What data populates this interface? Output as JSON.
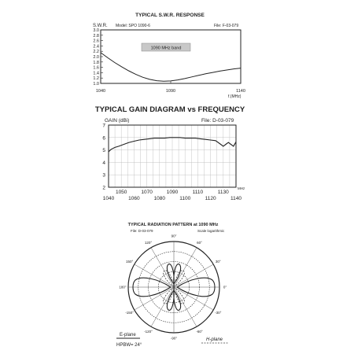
{
  "chart_data": [
    {
      "type": "line",
      "title": "TYPICAL S.W.R. RESPONSE",
      "ylabel": "S.W.R.",
      "model": "Model: SPO 1090-6",
      "file": "File: F-03-079",
      "band_label": "1090 MHz band",
      "xlabel": "f.(MHz)",
      "xlim": [
        1040,
        1140
      ],
      "ylim": [
        1.0,
        3.0
      ],
      "xticks": [
        "1040",
        "1090",
        "1140"
      ],
      "yticks": [
        "1.0",
        "1.2",
        "1.4",
        "1.6",
        "1.8",
        "2.0",
        "2.2",
        "2.4",
        "2.6",
        "2.8",
        "3.0"
      ],
      "grid": false,
      "series": [
        {
          "x": [
            1040,
            1045,
            1050,
            1055,
            1060,
            1065,
            1070,
            1075,
            1080,
            1085,
            1090,
            1095,
            1100,
            1105,
            1110,
            1115,
            1120,
            1125,
            1130,
            1135,
            1140
          ],
          "y": [
            2.15,
            1.96,
            1.78,
            1.62,
            1.47,
            1.34,
            1.23,
            1.15,
            1.1,
            1.08,
            1.09,
            1.13,
            1.18,
            1.24,
            1.3,
            1.36,
            1.41,
            1.46,
            1.5,
            1.54,
            1.57
          ]
        }
      ]
    },
    {
      "type": "line",
      "title": "TYPICAL GAIN DIAGRAM vs FREQUENCY",
      "ylabel": "GAIN (dBi)",
      "file": "File:  D-03-079",
      "xunit": "MHz",
      "xlim": [
        1040,
        1140
      ],
      "ylim": [
        2,
        7
      ],
      "xticks_top": [
        "1050",
        "1070",
        "1090",
        "1110",
        "1130"
      ],
      "xticks_bottom": [
        "1040",
        "1060",
        "1080",
        "1100",
        "1120",
        "1140"
      ],
      "yticks": [
        "2",
        "3",
        "4",
        "5",
        "6",
        "7"
      ],
      "grid": true,
      "series": [
        {
          "x": [
            1040,
            1042,
            1045,
            1048,
            1052,
            1056,
            1060,
            1064,
            1068,
            1072,
            1076,
            1080,
            1084,
            1088,
            1092,
            1096,
            1100,
            1104,
            1108,
            1112,
            1116,
            1120,
            1124,
            1128,
            1130,
            1132,
            1134,
            1136,
            1138,
            1140
          ],
          "y": [
            4.85,
            5.05,
            5.2,
            5.3,
            5.45,
            5.6,
            5.7,
            5.8,
            5.85,
            5.9,
            5.95,
            5.95,
            5.95,
            6.0,
            6.0,
            6.0,
            5.95,
            5.95,
            5.95,
            5.9,
            5.85,
            5.8,
            5.75,
            5.45,
            5.3,
            5.45,
            5.6,
            5.45,
            5.3,
            5.65
          ]
        }
      ]
    },
    {
      "type": "polar",
      "title": "TYPICAL RADIATION PATTERN at 1090 MHz",
      "file": "File: D-03-079",
      "scale_note": "Scale logarithmic",
      "angle_labels": [
        "0°",
        "30°",
        "60°",
        "90°",
        "120°",
        "150°",
        "180°",
        "-150°",
        "-120°",
        "-90°",
        "-60°",
        "-30°"
      ],
      "legend": [
        "E-plane",
        "H-plane"
      ],
      "hpbw": "HPBW= 24°"
    }
  ]
}
